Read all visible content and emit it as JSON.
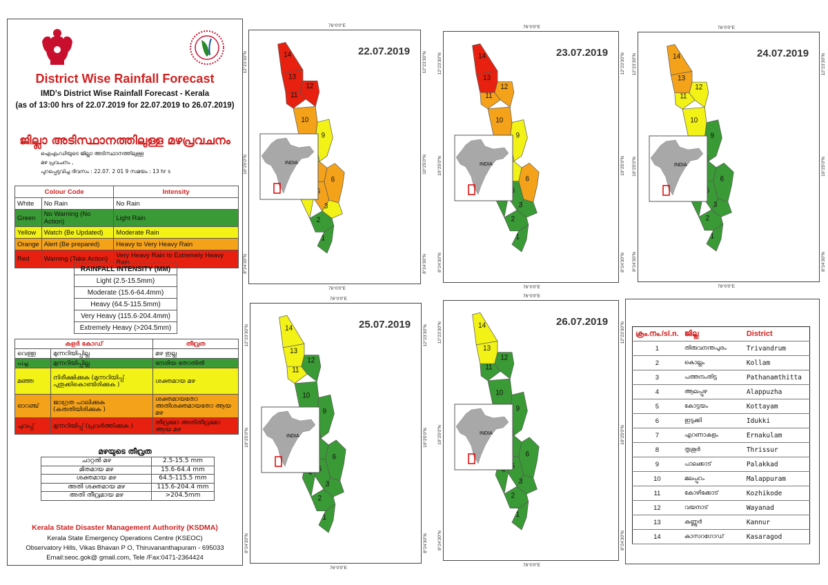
{
  "header": {
    "title": "District Wise Rainfall Forecast",
    "subtitle_line1": "IMD's District Wise Rainfall Forecast - Kerala",
    "subtitle_line2": "(as of 13:00 hrs of 22.07.2019  for 22.07.2019 to 26.07.2019)",
    "ml_title": "ജില്ലാ അടിസ്ഥാനത്തിലുള്ള  മഴപ്രവചനം",
    "ml_sub_line1": "ഐഎംഡിയുടെ          ജില്ലാ        അടിസ്ഥാനത്തിലുള്ള",
    "ml_sub_line2": "മഴ  പ്രവചനം          ,",
    "ml_sub_line3": "പുറപ്പെടുവിച്ച           ദിവസം   :   22.07.   2 01 9   സമയം   :  13   hr s"
  },
  "colour_code": {
    "headers": [
      "Colour Code",
      "Intensity"
    ],
    "rows": [
      {
        "colour": "White",
        "code": "No Rain",
        "intensity": "No Rain",
        "bg": "#ffffff"
      },
      {
        "colour": "Green",
        "code": "No Warning (No Action)",
        "intensity": "Light Rain",
        "bg": "#3a9a35"
      },
      {
        "colour": "Yellow",
        "code": "Watch (Be Updated)",
        "intensity": "Moderate Rain",
        "bg": "#f2f217"
      },
      {
        "colour": "Orange",
        "code": "Alert (Be prepared)",
        "intensity": "Heavy to Very Heavy Rain",
        "bg": "#f5a21b"
      },
      {
        "colour": "Red",
        "code": "Warning (Take Action)",
        "intensity": "Very Heavy Rain to Extremely Heavy Rain",
        "bg": "#e8200f"
      }
    ]
  },
  "rainfall_intensity": {
    "heading": "RAINFALL INTENSITY (MM)",
    "rows": [
      "Light (2.5-15.5mm)",
      "Moderate (15.6-64.4mm)",
      "Heavy (64.5-115.5mm)",
      "Very Heavy (115.6-204.4mm)",
      "Extremely Heavy (>204.5mm)"
    ]
  },
  "ml_colour_code": {
    "headers": [
      "കളർ കോഡ്",
      "തീവ്രത"
    ],
    "rows": [
      {
        "colour": "വെള്ള",
        "code": "മുന്നറിയിപ്പില്ല",
        "intensity": "മഴ ഇല്ല",
        "bg": "#ffffff"
      },
      {
        "colour": "പച്ച",
        "code": "മുന്നറിയിപ്പില്ല",
        "intensity": "നേരിയ തോതിൽ",
        "bg": "#3a9a35"
      },
      {
        "colour": "മഞ്ഞ",
        "code": "നിരീക്ഷിക്കുക (മുന്നറിയിപ്പ് പുതുക്കികൊണ്ടിരിക്കുക )",
        "intensity": "ശക്തമായ മഴ",
        "bg": "#f2f217"
      },
      {
        "colour": "ഓറഞ്ച്",
        "code": "ജാഗ്രത പാലിക്കുക (കരുതിയിരിക്കുക )",
        "intensity": "ശക്തമായതോ അതിശക്തമായതോ ആയ മഴ",
        "bg": "#f5a21b"
      },
      {
        "colour": "ചുവപ്പ്",
        "code": "മുന്നറിയിപ്പ് (പ്രവർത്തിക്കുക )",
        "intensity": "തീവ്രമോ അതിതീവ്രമോ ആയ മഴ",
        "bg": "#e8200f"
      }
    ]
  },
  "ml_rainfall_intensity": {
    "heading": "മഴയുടെ തീവ്രത",
    "rows": [
      {
        "label": "ചാറ്റൽ മഴ",
        "range": "2.5-15.5 mm"
      },
      {
        "label": "മിതമായ മഴ",
        "range": "15.6-64.4 mm"
      },
      {
        "label": "ശക്തമായ മഴ",
        "range": "64.5-115.5 mm"
      },
      {
        "label": "അതി ശക്തമായ മഴ",
        "range": "115.6-204.4 mm"
      },
      {
        "label": "അതി തീവ്രമായ മഴ",
        "range": ">204.5mm"
      }
    ]
  },
  "footer": {
    "org": "Kerala State Disaster Management Authority (KSDMA)",
    "line1": "Kerala State Emergency Operations Centre (KSEOC)",
    "line2": "Observatory Hills, Vikas Bhavan P O, Thiruvananthapuram - 695033",
    "line3": "Email:seoc.gok@ gmail.com, Tele /Fax:0471-2364424"
  },
  "coords": {
    "lon": "76°0'0\"E",
    "lat_n": "12°23'30\"N",
    "lat_m": "10°25'0\"N",
    "lat_s": "8°24'30\"N"
  },
  "inset_label": "INDIA",
  "palette": {
    "green": "#3a9a35",
    "yellow": "#f2f217",
    "orange": "#f5a21b",
    "red": "#e8200f"
  },
  "maps": [
    {
      "date": "22.07.2019",
      "colors": [
        "G",
        "G",
        "Y",
        "Y",
        "O",
        "O",
        "O",
        "Y",
        "Y",
        "O",
        "R",
        "R",
        "R",
        "R"
      ]
    },
    {
      "date": "23.07.2019",
      "colors": [
        "G",
        "G",
        "G",
        "G",
        "G",
        "O",
        "Y",
        "Y",
        "Y",
        "O",
        "O",
        "O",
        "R",
        "R"
      ]
    },
    {
      "date": "24.07.2019",
      "colors": [
        "G",
        "G",
        "G",
        "G",
        "G",
        "G",
        "G",
        "G",
        "G",
        "Y",
        "Y",
        "Y",
        "O",
        "O"
      ]
    },
    {
      "date": "25.07.2019",
      "colors": [
        "G",
        "G",
        "G",
        "G",
        "G",
        "G",
        "G",
        "G",
        "G",
        "G",
        "Y",
        "G",
        "Y",
        "Y"
      ]
    },
    {
      "date": "26.07.2019",
      "colors": [
        "G",
        "G",
        "G",
        "G",
        "G",
        "G",
        "G",
        "G",
        "G",
        "G",
        "G",
        "G",
        "Y",
        "Y"
      ]
    }
  ],
  "districts": {
    "headers": [
      "ക്രം.നം./sl.n.",
      "ജില്ല",
      "District"
    ],
    "rows": [
      {
        "n": "1",
        "ml": "തിരുവനന്തപുരം",
        "en": "Trivandrum"
      },
      {
        "n": "2",
        "ml": "കൊല്ലം",
        "en": "Kollam"
      },
      {
        "n": "3",
        "ml": "പത്തനംതിട്ട",
        "en": "Pathanamthitta"
      },
      {
        "n": "4",
        "ml": "ആലപ്പുഴ",
        "en": "Alappuzha"
      },
      {
        "n": "5",
        "ml": "കോട്ടയം",
        "en": "Kottayam"
      },
      {
        "n": "6",
        "ml": "ഇടുക്കി",
        "en": "Idukki"
      },
      {
        "n": "7",
        "ml": "എറണാകുളം",
        "en": "Ernakulam"
      },
      {
        "n": "8",
        "ml": "തൃശൂർ",
        "en": "Thrissur"
      },
      {
        "n": "9",
        "ml": "പാലക്കാട്",
        "en": "Palakkad"
      },
      {
        "n": "10",
        "ml": "മലപ്പുറം",
        "en": "Malappuram"
      },
      {
        "n": "11",
        "ml": "കോഴിക്കോട്",
        "en": "Kozhikode"
      },
      {
        "n": "12",
        "ml": "വയനാട്",
        "en": "Wayanad"
      },
      {
        "n": "13",
        "ml": "കണ്ണൂർ",
        "en": "Kannur"
      },
      {
        "n": "14",
        "ml": "കാസറഗോഡ്",
        "en": "Kasaragod"
      }
    ]
  }
}
